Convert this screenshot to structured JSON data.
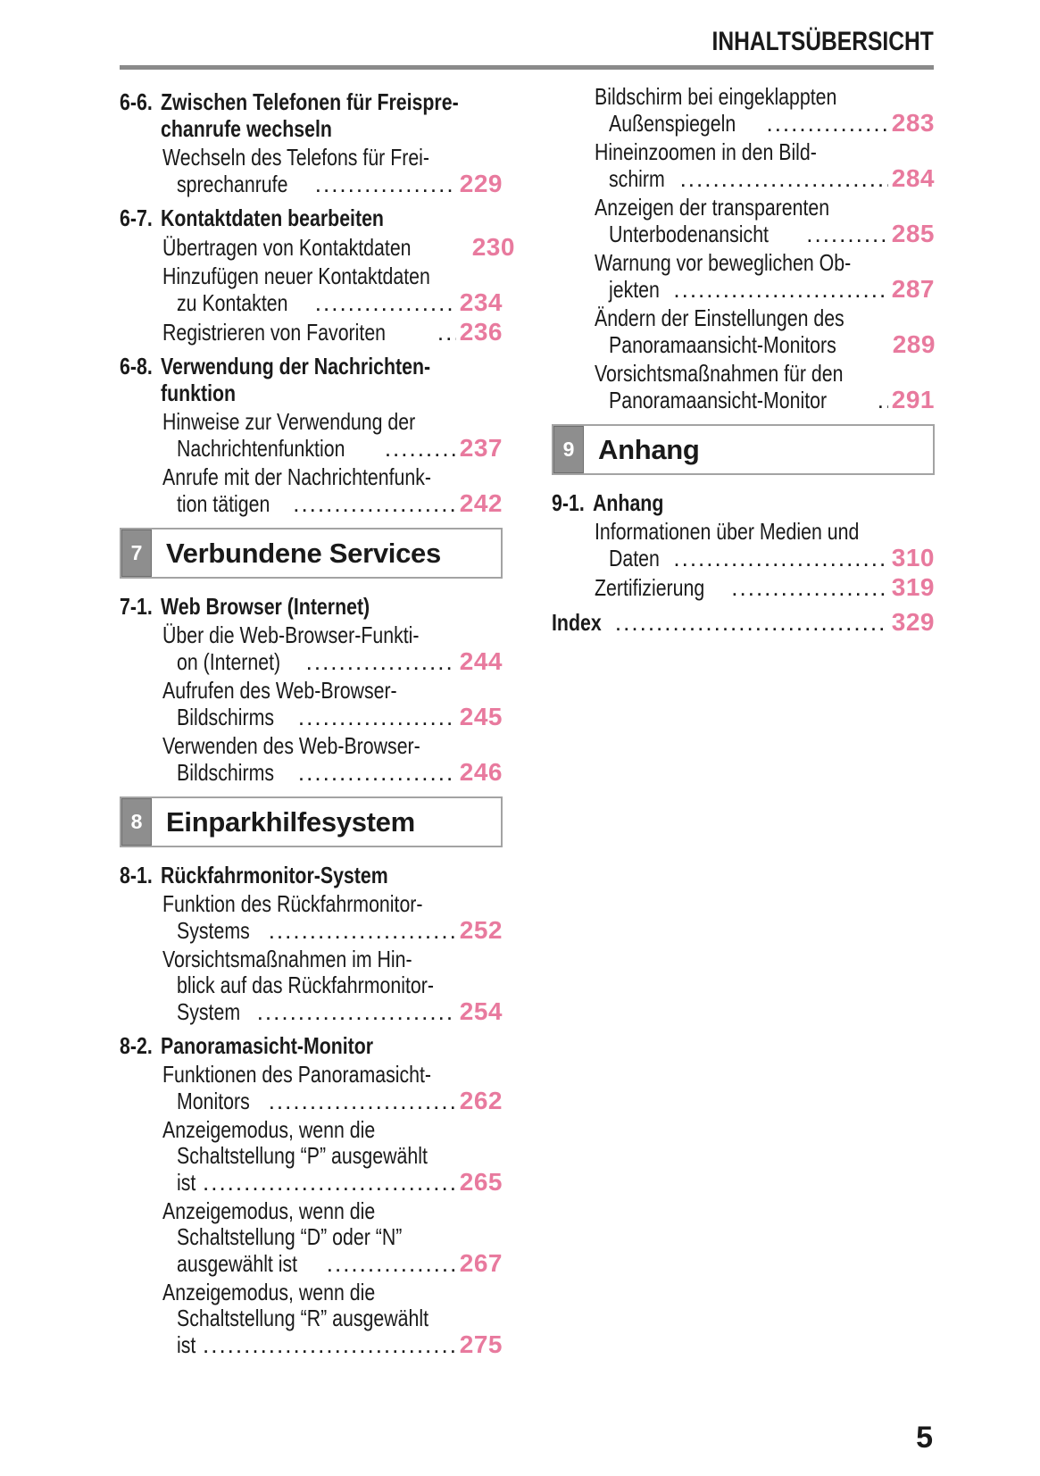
{
  "header": {
    "title": "INHALTSÜBERSICHT"
  },
  "footer": {
    "page_number": "5"
  },
  "colors": {
    "accent_pink": "#e87a9e",
    "tab_gray": "#8e8e8e",
    "rule_gray": "#8a8a8a",
    "text_black": "#1a1a1a"
  },
  "columns": [
    [
      {
        "t": "section",
        "label": "6-6.",
        "lines": [
          "Zwischen Telefonen für Freispre-",
          "chanrufe wechseln"
        ]
      },
      {
        "t": "entry",
        "pre": [
          "Wechseln des Telefons für Frei-"
        ],
        "last": "sprechanrufe",
        "page": "229"
      },
      {
        "t": "section",
        "label": "6-7.",
        "lines": [
          "Kontaktdaten bearbeiten"
        ]
      },
      {
        "t": "entry",
        "pre": [],
        "last": "Übertragen von Kontaktdaten",
        "page": "230"
      },
      {
        "t": "entry",
        "pre": [
          "Hinzufügen neuer Kontaktdaten"
        ],
        "last": "zu Kontakten",
        "page": "234"
      },
      {
        "t": "entry",
        "pre": [],
        "last": "Registrieren von Favoriten",
        "page": "236"
      },
      {
        "t": "section",
        "label": "6-8.",
        "lines": [
          "Verwendung der Nachrichten-",
          "funktion"
        ]
      },
      {
        "t": "entry",
        "pre": [
          "Hinweise zur Verwendung der"
        ],
        "last": "Nachrichtenfunktion",
        "page": "237"
      },
      {
        "t": "entry",
        "pre": [
          "Anrufe mit der Nachrichtenfunk-"
        ],
        "last": "tion tätigen",
        "page": "242"
      },
      {
        "t": "chapter",
        "num": "7",
        "title": "Verbundene Services"
      },
      {
        "t": "section",
        "label": "7-1.",
        "lines": [
          "Web Browser (Internet)"
        ]
      },
      {
        "t": "entry",
        "pre": [
          "Über die Web-Browser-Funkti-"
        ],
        "last": "on (Internet)",
        "page": "244"
      },
      {
        "t": "entry",
        "pre": [
          "Aufrufen des Web-Browser-"
        ],
        "last": "Bildschirms",
        "page": "245"
      },
      {
        "t": "entry",
        "pre": [
          "Verwenden des Web-Browser-"
        ],
        "last": "Bildschirms",
        "page": "246"
      },
      {
        "t": "chapter",
        "num": "8",
        "title": "Einparkhilfesystem"
      },
      {
        "t": "section",
        "label": "8-1.",
        "lines": [
          "Rückfahrmonitor-System"
        ]
      },
      {
        "t": "entry",
        "pre": [
          "Funktion des Rückfahrmonitor-"
        ],
        "last": "Systems",
        "page": "252"
      },
      {
        "t": "entry",
        "pre": [
          "Vorsichtsmaßnahmen im Hin-",
          "blick auf das Rückfahrmonitor-"
        ],
        "last": "System",
        "page": "254"
      },
      {
        "t": "section",
        "label": "8-2.",
        "lines": [
          "Panoramasicht-Monitor"
        ]
      },
      {
        "t": "entry",
        "pre": [
          "Funktionen des Panoramasicht-"
        ],
        "last": "Monitors",
        "page": "262"
      },
      {
        "t": "entry",
        "pre": [
          "Anzeigemodus, wenn die",
          "Schaltstellung “P” ausgewählt"
        ],
        "last": "ist",
        "page": "265"
      },
      {
        "t": "entry",
        "pre": [
          "Anzeigemodus, wenn die",
          "Schaltstellung “D” oder “N”"
        ],
        "last": "ausgewählt ist",
        "page": "267"
      },
      {
        "t": "entry",
        "pre": [
          "Anzeigemodus, wenn die",
          "Schaltstellung “R” ausgewählt"
        ],
        "last": "ist",
        "page": "275"
      }
    ],
    [
      {
        "t": "entry",
        "pre": [
          "Bildschirm bei eingeklappten"
        ],
        "last": "Außenspiegeln",
        "page": "283"
      },
      {
        "t": "entry",
        "pre": [
          "Hineinzoomen in den Bild-"
        ],
        "last": "schirm",
        "page": "284"
      },
      {
        "t": "entry",
        "pre": [
          "Anzeigen der transparenten"
        ],
        "last": "Unterbodenansicht",
        "page": "285"
      },
      {
        "t": "entry",
        "pre": [
          "Warnung vor beweglichen Ob-"
        ],
        "last": "jekten",
        "page": "287"
      },
      {
        "t": "entry",
        "pre": [
          "Ändern der Einstellungen des"
        ],
        "last": "Panoramaansicht-Monitors",
        "page": "289"
      },
      {
        "t": "entry",
        "pre": [
          "Vorsichtsmaßnahmen für den"
        ],
        "last": "Panoramaansicht-Monitor",
        "page": "291"
      },
      {
        "t": "chapter",
        "num": "9",
        "title": "Anhang"
      },
      {
        "t": "section",
        "label": "9-1.",
        "lines": [
          "Anhang"
        ]
      },
      {
        "t": "entry",
        "pre": [
          "Informationen über Medien und"
        ],
        "last": "Daten",
        "page": "310"
      },
      {
        "t": "entry",
        "pre": [],
        "last": "Zertifizierung",
        "page": "319"
      },
      {
        "t": "index",
        "label": "Index",
        "page": "329"
      }
    ]
  ]
}
